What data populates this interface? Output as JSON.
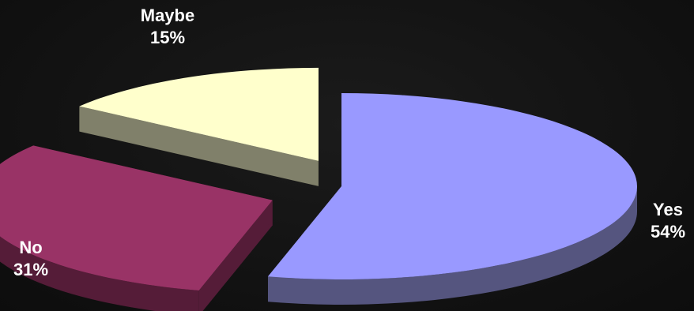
{
  "chart_data": {
    "type": "pie",
    "style": "3d-exploded",
    "slices": [
      {
        "label": "Yes",
        "value": 54,
        "value_label": "54%",
        "color": "#9999ff",
        "side_color": "#55557f"
      },
      {
        "label": "No",
        "value": 31,
        "value_label": "31%",
        "color": "#993366",
        "side_color": "#551c38"
      },
      {
        "label": "Maybe",
        "value": 15,
        "value_label": "15%",
        "color": "#ffffcc",
        "side_color": "#80806a"
      }
    ],
    "background": "#121212"
  }
}
